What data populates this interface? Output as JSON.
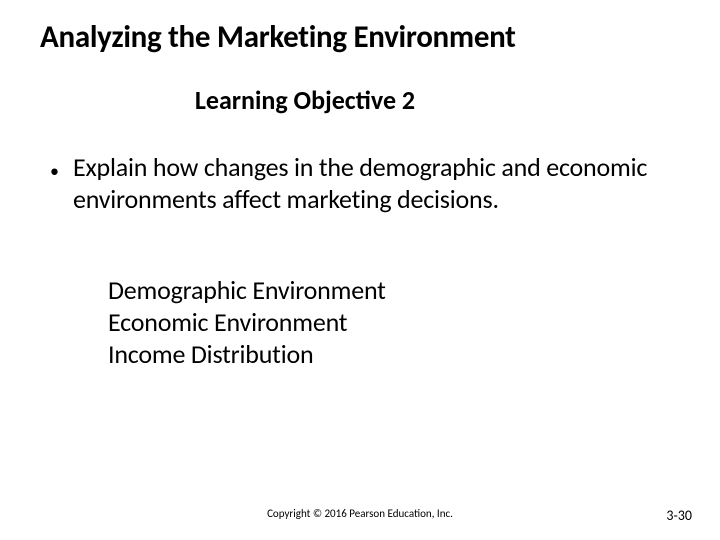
{
  "slide": {
    "title": "Analyzing the Marketing Environment",
    "subtitle": "Learning Objective 2",
    "bullet": {
      "marker": "•",
      "text": "Explain how changes in the demographic and economic environments affect marketing decisions."
    },
    "topics": [
      "Demographic Environment",
      "Economic Environment",
      "Income Distribution"
    ],
    "copyright": "Copyright © 2016 Pearson Education, Inc.",
    "page_number": "3-30"
  },
  "style": {
    "background_color": "#ffffff",
    "text_color": "#000000",
    "title_fontsize": 31,
    "subtitle_fontsize": 26,
    "body_fontsize": 26,
    "copyright_fontsize": 11,
    "page_number_fontsize": 14,
    "font_family": "Calibri"
  }
}
